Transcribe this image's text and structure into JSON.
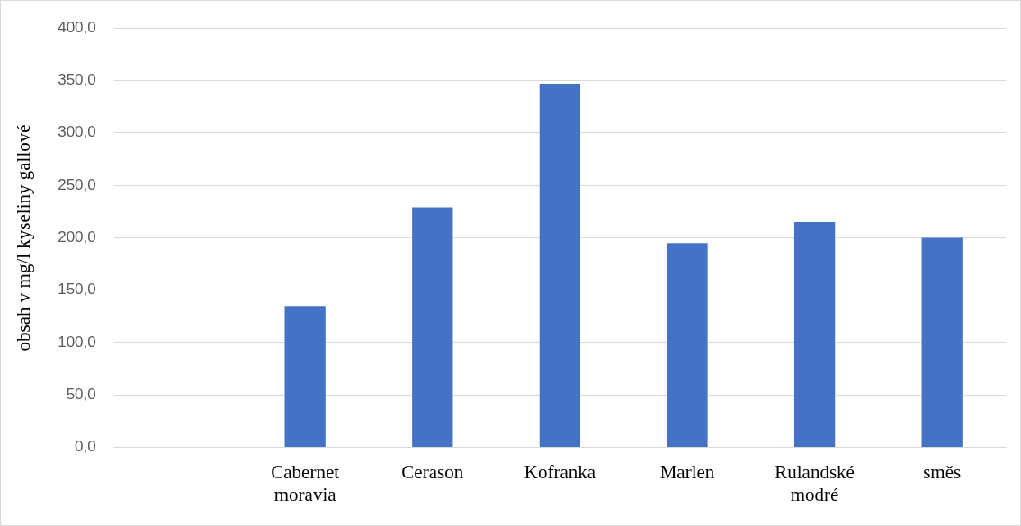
{
  "chart_data": {
    "type": "bar",
    "ylabel": "obsah v mg/l kyseliny gallové",
    "categories": [
      null,
      "Cabernet moravia",
      "Cerason",
      "Kofranka",
      "Marlen",
      "Rulandské modré",
      "směs"
    ],
    "values": [
      null,
      135,
      229,
      347,
      195,
      215,
      200
    ],
    "color": "#4472c4",
    "ylim": [
      0,
      400
    ],
    "yticks": [
      {
        "value": 0,
        "label": "0,0"
      },
      {
        "value": 50,
        "label": "50,0"
      },
      {
        "value": 100,
        "label": "100,0"
      },
      {
        "value": 150,
        "label": "150,0"
      },
      {
        "value": 200,
        "label": "200,0"
      },
      {
        "value": 250,
        "label": "250,0"
      },
      {
        "value": 300,
        "label": "300,0"
      },
      {
        "value": 350,
        "label": "350,0"
      },
      {
        "value": 400,
        "label": "400,0"
      }
    ],
    "grid": "y"
  }
}
